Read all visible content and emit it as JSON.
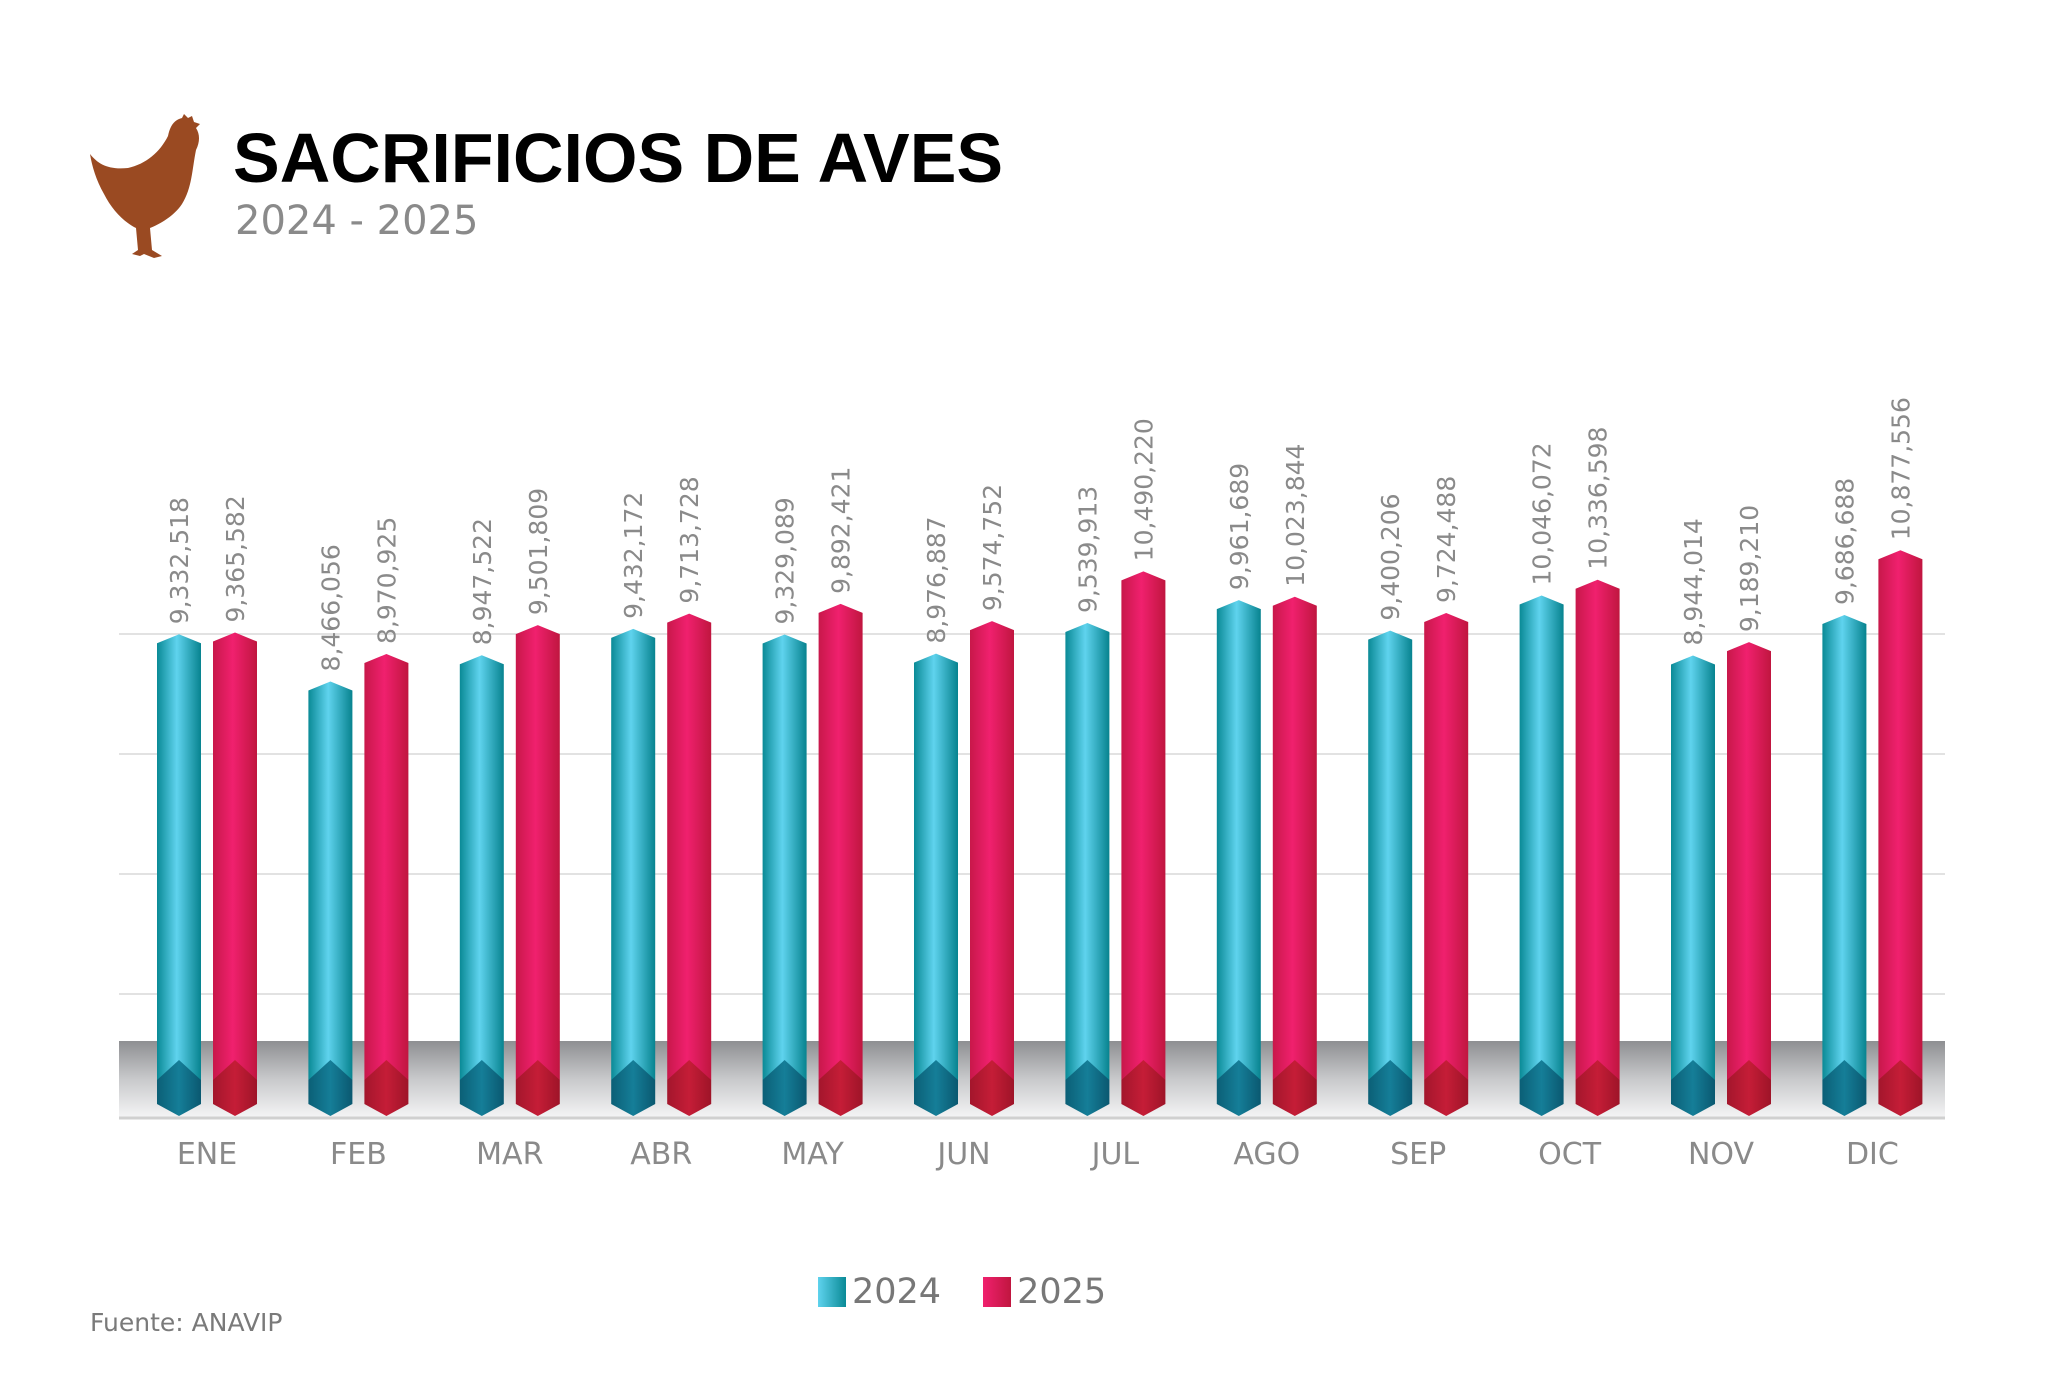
{
  "header": {
    "title": "SACRIFICIOS DE AVES",
    "subtitle": "2024 - 2025",
    "logo_icon": "chicken-icon",
    "logo_color": "#9a4a22"
  },
  "source": "Fuente: ANAVIP",
  "chart_data": {
    "type": "bar",
    "title": "SACRIFICIOS DE AVES",
    "subtitle": "2024 - 2025",
    "xlabel": "",
    "ylabel": "",
    "categories": [
      "ENE",
      "FEB",
      "MAR",
      "ABR",
      "MAY",
      "JUN",
      "JUL",
      "AGO",
      "SEP",
      "OCT",
      "NOV",
      "DIC"
    ],
    "series": [
      {
        "name": "2024",
        "color": "#1aa3b8",
        "values": [
          9332518,
          8466056,
          8947522,
          9432172,
          9329089,
          8976887,
          9539913,
          9961689,
          9400206,
          10046072,
          8944014,
          9686688
        ]
      },
      {
        "name": "2025",
        "color": "#e01e64",
        "values": [
          9365582,
          8970925,
          9501809,
          9713728,
          9892421,
          9574752,
          10490220,
          10023844,
          9724488,
          10336598,
          9189210,
          10877556
        ]
      }
    ],
    "data_labels": [
      [
        "9,332,518",
        "8,466,056",
        "8,947,522",
        "9,432,172",
        "9,329,089",
        "8,976,887",
        "9,539,913",
        "9,961,689",
        "9,400,206",
        "10,046,072",
        "8,944,014",
        "9,686,688"
      ],
      [
        "9,365,582",
        "8,970,925",
        "9,501,809",
        "9,713,728",
        "9,892,421",
        "9,574,752",
        "10,490,220",
        "10,023,844",
        "9,724,488",
        "10,336,598",
        "9,189,210",
        "10,877,556"
      ]
    ],
    "grid": true,
    "y_axis_labels_shown": false,
    "legend_position": "bottom"
  }
}
